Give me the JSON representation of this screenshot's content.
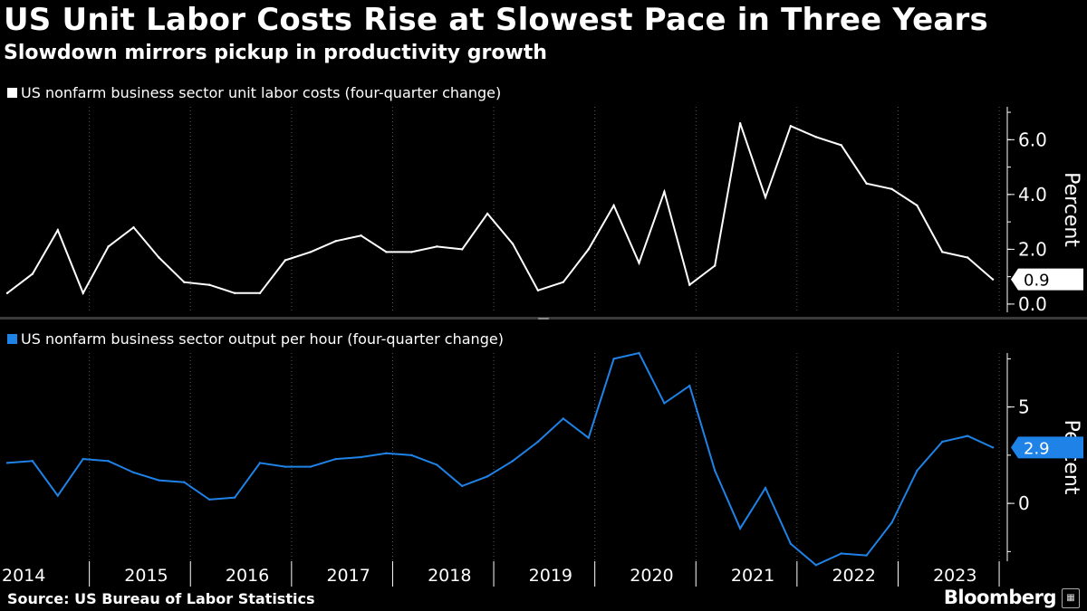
{
  "header": {
    "title": "US Unit Labor Costs Rise at Slowest Pace in Three Years",
    "subtitle": "Slowdown mirrors pickup in productivity growth"
  },
  "footer": {
    "source": "Source: US Bureau of Labor Statistics",
    "brand": "Bloomberg"
  },
  "colors": {
    "ulc": "#ffffff",
    "productivity": "#1f82e6",
    "background": "#000000"
  },
  "chart_data": [
    {
      "type": "line",
      "legend": "US nonfarm business sector unit labor costs (four-quarter change)",
      "ylabel": "Percent",
      "ylim": [
        -0.3,
        7.2
      ],
      "yticks": [
        0.0,
        2.0,
        4.0,
        6.0
      ],
      "ytick_labels": [
        "0.0",
        "2.0",
        "4.0",
        "6.0"
      ],
      "last_value_label": "0.9",
      "grid": "vertical-dotted",
      "series": [
        {
          "values": [
            0.4,
            1.1,
            2.7,
            0.4,
            2.1,
            2.8,
            1.7,
            0.8,
            0.7,
            0.4,
            0.4,
            1.6,
            1.9,
            2.3,
            2.5,
            1.9,
            1.9,
            2.1,
            2.0,
            3.3,
            2.2,
            0.5,
            0.8,
            2.0,
            3.6,
            1.5,
            4.1,
            0.7,
            1.4,
            6.6,
            3.9,
            6.5,
            6.1,
            5.8,
            4.4,
            4.2,
            3.6,
            1.9,
            1.7,
            0.9
          ]
        }
      ]
    },
    {
      "type": "line",
      "legend": "US nonfarm business sector output per hour (four-quarter change)",
      "ylabel": "Percent",
      "ylim": [
        -3.0,
        7.8
      ],
      "yticks": [
        0,
        5
      ],
      "ytick_labels": [
        "0",
        "5"
      ],
      "last_value_label": "2.9",
      "grid": "vertical-dotted",
      "x_quarters": [
        "2014Q1",
        "2014Q2",
        "2014Q3",
        "2014Q4",
        "2015Q1",
        "2015Q2",
        "2015Q3",
        "2015Q4",
        "2016Q1",
        "2016Q2",
        "2016Q3",
        "2016Q4",
        "2017Q1",
        "2017Q2",
        "2017Q3",
        "2017Q4",
        "2018Q1",
        "2018Q2",
        "2018Q3",
        "2018Q4",
        "2019Q1",
        "2019Q2",
        "2019Q3",
        "2019Q4",
        "2020Q1",
        "2020Q2",
        "2020Q3",
        "2020Q4",
        "2021Q1",
        "2021Q2",
        "2021Q3",
        "2021Q4",
        "2022Q1",
        "2022Q2",
        "2022Q3",
        "2022Q4",
        "2023Q1",
        "2023Q2",
        "2023Q3",
        "2023Q4"
      ],
      "xtick_labels": [
        "2014",
        "2015",
        "2016",
        "2017",
        "2018",
        "2019",
        "2020",
        "2021",
        "2022",
        "2023"
      ],
      "series": [
        {
          "values": [
            2.1,
            2.2,
            0.4,
            2.3,
            2.2,
            1.6,
            1.2,
            1.1,
            0.2,
            0.3,
            2.1,
            1.9,
            1.9,
            2.3,
            2.4,
            2.6,
            2.5,
            2.0,
            0.9,
            1.4,
            2.2,
            3.2,
            4.4,
            3.4,
            7.5,
            7.8,
            5.2,
            6.1,
            1.7,
            -1.3,
            0.8,
            -2.1,
            -3.2,
            -2.6,
            -2.7,
            -1.0,
            1.7,
            3.2,
            3.5,
            2.9
          ]
        }
      ]
    }
  ]
}
